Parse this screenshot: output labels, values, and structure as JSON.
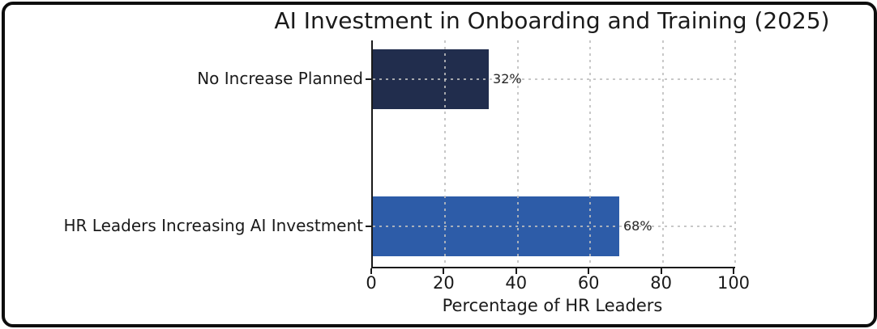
{
  "chart_data": {
    "type": "bar",
    "orientation": "horizontal",
    "title": "AI Investment in Onboarding and Training (2025)",
    "categories": [
      "No Increase Planned",
      "HR Leaders Increasing AI Investment"
    ],
    "values": [
      32,
      68
    ],
    "value_labels": [
      "32%",
      "68%"
    ],
    "bar_colors": [
      "#212D4D",
      "#2D5CA8"
    ],
    "xlabel": "Percentage of HR Leaders",
    "xlim": [
      0,
      100
    ],
    "x_ticks": [
      "0",
      "20",
      "40",
      "60",
      "80",
      "100"
    ],
    "grid": "dashed",
    "grid_color": "#bebebe",
    "legend": "none"
  }
}
